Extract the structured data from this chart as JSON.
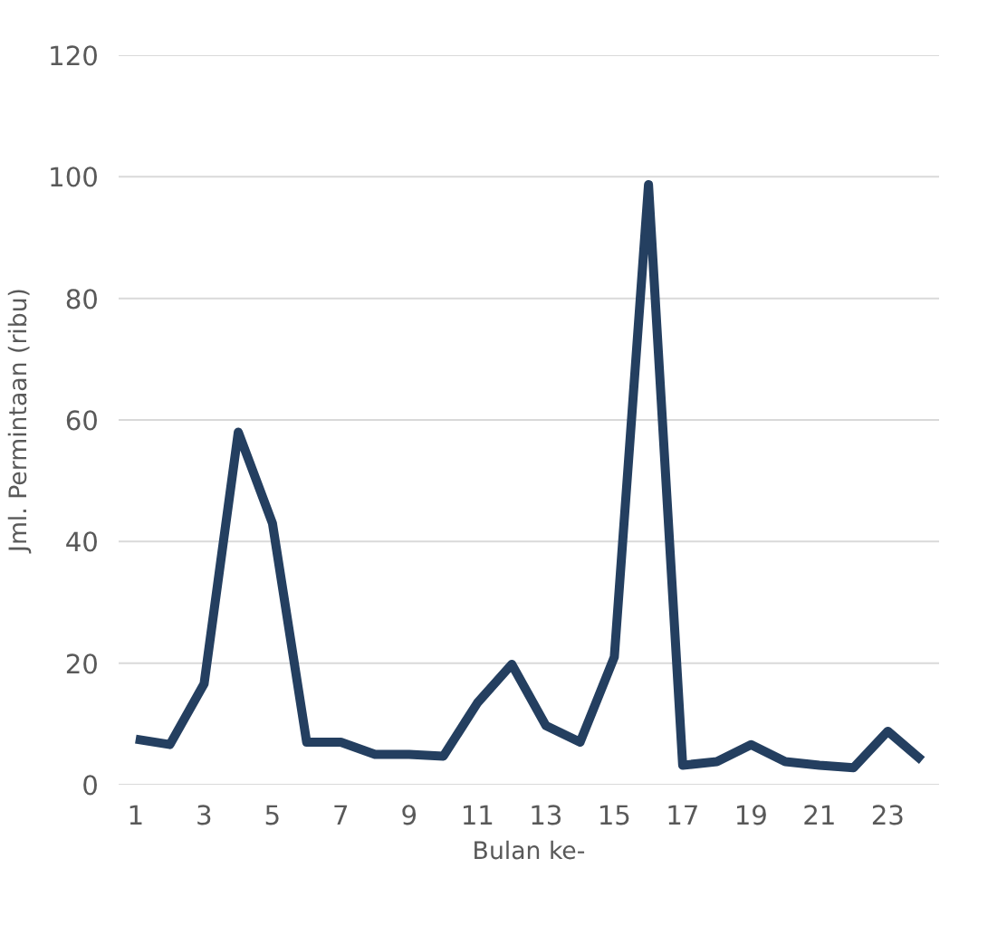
{
  "chart_data": {
    "type": "line",
    "xlabel": "Bulan ke-",
    "ylabel": "Jml. Permintaan (ribu)",
    "x": [
      1,
      2,
      3,
      4,
      5,
      6,
      7,
      8,
      9,
      10,
      11,
      12,
      13,
      14,
      15,
      16,
      17,
      18,
      19,
      20,
      21,
      22,
      23,
      24
    ],
    "series": [
      {
        "color": "#243f60",
        "values": [
          7.5,
          6.6,
          16.6,
          58,
          43,
          7,
          7,
          5,
          5,
          4.7,
          13.5,
          19.8,
          9.7,
          7,
          21,
          98.7,
          3.2,
          3.8,
          6.6,
          3.8,
          3.2,
          2.8,
          8.8,
          4
        ]
      }
    ],
    "xlim": [
      0.5,
      24.5
    ],
    "xticks": [
      1,
      3,
      5,
      7,
      9,
      11,
      13,
      15,
      17,
      19,
      21,
      23
    ],
    "ylim": [
      0,
      120
    ],
    "yticks": [
      0,
      20,
      40,
      60,
      80,
      100,
      120
    ],
    "grid": "y",
    "marker": "none",
    "line_style": "solid"
  }
}
